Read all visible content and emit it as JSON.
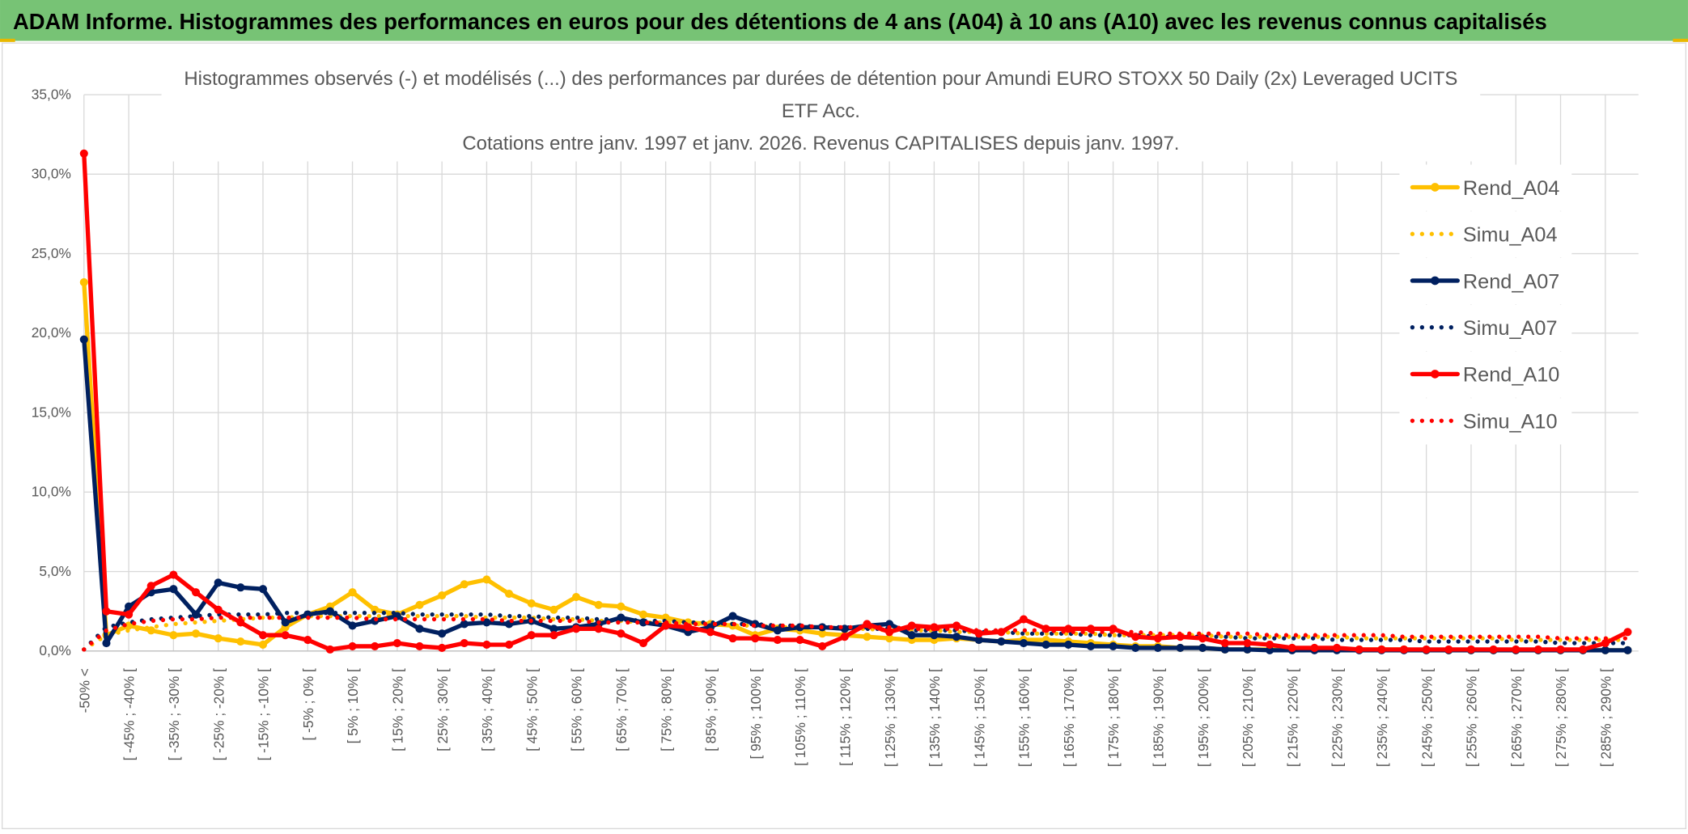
{
  "chart_data": {
    "type": "line",
    "header": "ADAM Informe. Histogrammes des performances en euros pour des détentions de 4 ans (A04) à 10 ans (A10) avec les revenus connus capitalisés",
    "title": "Histogrammes observés (-) et modélisés (...) des performances par durées de détention pour Amundi EURO STOXX 50 Daily (2x) Leveraged UCITS ETF Acc.",
    "subtitle": "Cotations entre janv. 1997 et janv. 2026. Revenus CAPITALISES depuis janv. 1997.",
    "categories": [
      "-50% <",
      null,
      "[ -45% ; -40% [",
      null,
      "[ -35% ; -30% [",
      null,
      "[ -25% ; -20% [",
      null,
      "[ -15% ; -10% [",
      null,
      "[ -5% ; 0% [",
      null,
      "[ 5% ; 10% [",
      null,
      "[ 15% ; 20% [",
      null,
      "[ 25% ; 30% [",
      null,
      "[ 35% ; 40% [",
      null,
      "[ 45% ; 50% [",
      null,
      "[ 55% ; 60% [",
      null,
      "[ 65% ; 70% [",
      null,
      "[ 75% ; 80% [",
      null,
      "[ 85% ; 90% [",
      null,
      "[ 95% ; 100% [",
      null,
      "[ 105% ; 110% [",
      null,
      "[ 115% ; 120% [",
      null,
      "[ 125% ; 130% [",
      null,
      "[ 135% ; 140% [",
      null,
      "[ 145% ; 150% [",
      null,
      "[ 155% ; 160% [",
      null,
      "[ 165% ; 170% [",
      null,
      "[ 175% ; 180% [",
      null,
      "[ 185% ; 190% [",
      null,
      "[ 195% ; 200% [",
      null,
      "[ 205% ; 210% [",
      null,
      "[ 215% ; 220% [",
      null,
      "[ 225% ; 230% [",
      null,
      "[ 235% ; 240% [",
      null,
      "[ 245% ; 250% [",
      null,
      "[ 255% ; 260% [",
      null,
      "[ 265% ; 270% [",
      null,
      "[ 275% ; 280% [",
      null,
      "[ 285% ; 290% [",
      null
    ],
    "series": [
      {
        "name": "Rend_A04",
        "color": "#ffc000",
        "style": "solid",
        "values": [
          23.2,
          1.0,
          1.6,
          1.3,
          1.0,
          1.1,
          0.8,
          0.6,
          0.4,
          1.5,
          2.3,
          2.8,
          3.7,
          2.6,
          2.3,
          2.9,
          3.5,
          4.2,
          4.5,
          3.6,
          3.0,
          2.6,
          3.4,
          2.9,
          2.8,
          2.3,
          2.1,
          1.8,
          1.7,
          1.6,
          1.0,
          1.4,
          1.3,
          1.1,
          1.0,
          0.9,
          0.8,
          0.7,
          0.7,
          0.8,
          0.7,
          0.6,
          0.7,
          0.7,
          0.6,
          0.5,
          0.4,
          0.3,
          0.3,
          0.2,
          0.2,
          0.1,
          0.1,
          0.1,
          0.1,
          0.1,
          0.1,
          0.1,
          0.1,
          0.1,
          0.05,
          0.05,
          0.05,
          0.05,
          0.05,
          0.05,
          0.05,
          0.05,
          0.05,
          0.05
        ]
      },
      {
        "name": "Simu_A04",
        "color": "#ffc000",
        "style": "dotted",
        "values": [
          0.1,
          1.0,
          1.3,
          1.5,
          1.7,
          1.8,
          1.9,
          2.0,
          2.1,
          2.1,
          2.2,
          2.2,
          2.2,
          2.2,
          2.2,
          2.2,
          2.2,
          2.2,
          2.1,
          2.1,
          2.1,
          2.0,
          2.0,
          1.9,
          1.9,
          1.8,
          1.8,
          1.7,
          1.7,
          1.6,
          1.6,
          1.5,
          1.5,
          1.5,
          1.4,
          1.4,
          1.3,
          1.3,
          1.3,
          1.2,
          1.2,
          1.2,
          1.1,
          1.1,
          1.1,
          1.1,
          1.0,
          1.0,
          1.0,
          1.0,
          1.0,
          0.9,
          0.9,
          0.9,
          0.9,
          0.9,
          0.9,
          0.8,
          0.8,
          0.8,
          0.8,
          0.8,
          0.8,
          0.8,
          0.7,
          0.7,
          0.7,
          0.7,
          0.7,
          0.7
        ]
      },
      {
        "name": "Rend_A07",
        "color": "#002060",
        "style": "solid",
        "values": [
          19.6,
          0.5,
          2.8,
          3.7,
          3.9,
          2.3,
          4.3,
          4.0,
          3.9,
          1.8,
          2.3,
          2.5,
          1.6,
          1.9,
          2.2,
          1.4,
          1.1,
          1.7,
          1.8,
          1.7,
          1.9,
          1.4,
          1.5,
          1.7,
          2.1,
          1.8,
          1.6,
          1.2,
          1.5,
          2.2,
          1.7,
          1.3,
          1.5,
          1.5,
          1.4,
          1.6,
          1.7,
          1.0,
          1.0,
          0.9,
          0.7,
          0.6,
          0.5,
          0.4,
          0.4,
          0.3,
          0.3,
          0.2,
          0.2,
          0.2,
          0.2,
          0.1,
          0.1,
          0.05,
          0.05,
          0.05,
          0.05,
          0.05,
          0.05,
          0.05,
          0.05,
          0.05,
          0.05,
          0.05,
          0.05,
          0.05,
          0.05,
          0.05,
          0.05,
          0.05
        ]
      },
      {
        "name": "Simu_A07",
        "color": "#002060",
        "style": "dotted",
        "values": [
          0.1,
          1.5,
          1.8,
          2.0,
          2.1,
          2.2,
          2.3,
          2.3,
          2.3,
          2.4,
          2.4,
          2.4,
          2.4,
          2.4,
          2.4,
          2.3,
          2.3,
          2.3,
          2.3,
          2.2,
          2.2,
          2.1,
          2.1,
          2.0,
          2.0,
          1.9,
          1.9,
          1.8,
          1.8,
          1.7,
          1.7,
          1.6,
          1.6,
          1.5,
          1.5,
          1.4,
          1.4,
          1.3,
          1.3,
          1.3,
          1.2,
          1.2,
          1.1,
          1.1,
          1.1,
          1.0,
          1.0,
          1.0,
          0.9,
          0.9,
          0.9,
          0.9,
          0.8,
          0.8,
          0.8,
          0.8,
          0.7,
          0.7,
          0.7,
          0.7,
          0.6,
          0.6,
          0.6,
          0.6,
          0.6,
          0.6,
          0.5,
          0.5,
          0.5,
          0.5
        ]
      },
      {
        "name": "Rend_A10",
        "color": "#ff0000",
        "style": "solid",
        "values": [
          31.3,
          2.5,
          2.3,
          4.1,
          4.8,
          3.7,
          2.6,
          1.8,
          1.0,
          1.0,
          0.7,
          0.1,
          0.3,
          0.3,
          0.5,
          0.3,
          0.2,
          0.5,
          0.4,
          0.4,
          1.0,
          1.0,
          1.4,
          1.4,
          1.1,
          0.5,
          1.6,
          1.5,
          1.2,
          0.8,
          0.8,
          0.7,
          0.7,
          0.3,
          0.9,
          1.7,
          1.2,
          1.6,
          1.5,
          1.6,
          1.1,
          1.2,
          2.0,
          1.4,
          1.4,
          1.4,
          1.4,
          0.9,
          0.8,
          0.9,
          0.8,
          0.5,
          0.5,
          0.4,
          0.2,
          0.2,
          0.2,
          0.1,
          0.1,
          0.1,
          0.1,
          0.1,
          0.1,
          0.1,
          0.1,
          0.1,
          0.1,
          0.1,
          0.5,
          1.2
        ]
      },
      {
        "name": "Simu_A10",
        "color": "#ff0000",
        "style": "dotted",
        "values": [
          0.1,
          1.3,
          1.7,
          1.9,
          2.0,
          2.0,
          2.1,
          2.1,
          2.1,
          2.1,
          2.1,
          2.1,
          2.1,
          2.0,
          2.0,
          2.0,
          2.0,
          2.0,
          2.0,
          1.9,
          1.9,
          1.9,
          1.9,
          1.8,
          1.8,
          1.8,
          1.8,
          1.7,
          1.7,
          1.7,
          1.6,
          1.6,
          1.6,
          1.5,
          1.5,
          1.5,
          1.5,
          1.4,
          1.4,
          1.4,
          1.3,
          1.3,
          1.3,
          1.3,
          1.2,
          1.2,
          1.2,
          1.2,
          1.1,
          1.1,
          1.1,
          1.1,
          1.1,
          1.0,
          1.0,
          1.0,
          1.0,
          1.0,
          1.0,
          0.9,
          0.9,
          0.9,
          0.9,
          0.9,
          0.9,
          0.9,
          0.8,
          0.8,
          0.8,
          0.8
        ]
      }
    ],
    "ylim": [
      0,
      35
    ],
    "yticks": [
      {
        "value": 0,
        "label": "0,0%"
      },
      {
        "value": 5,
        "label": "5,0%"
      },
      {
        "value": 10,
        "label": "10,0%"
      },
      {
        "value": 15,
        "label": "15,0%"
      },
      {
        "value": 20,
        "label": "20,0%"
      },
      {
        "value": 25,
        "label": "25,0%"
      },
      {
        "value": 30,
        "label": "30,0%"
      },
      {
        "value": 35,
        "label": "35,0%"
      }
    ],
    "grid": true,
    "legend": "right"
  }
}
